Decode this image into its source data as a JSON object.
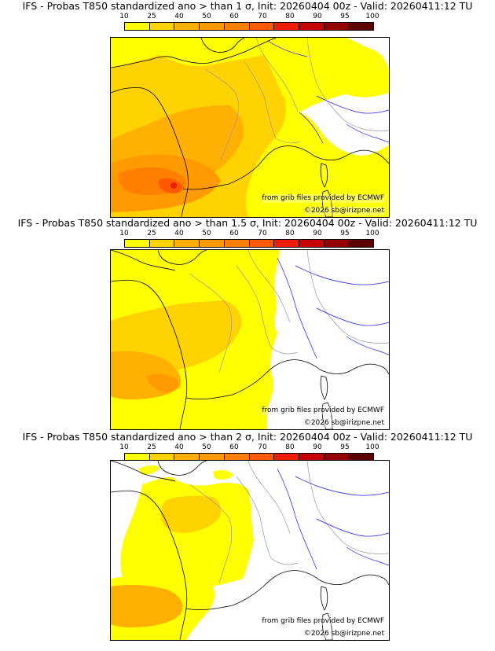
{
  "colors": {
    "c10": "#ffff00",
    "c25": "#ffd200",
    "c40": "#ffb000",
    "c50": "#ff9a00",
    "c60": "#ff8000",
    "c70": "#ff5a00",
    "c80": "#ee1c00",
    "c90": "#c60000",
    "c95": "#920000",
    "c100": "#5a0000",
    "coast": "#000000",
    "border": "#999999",
    "river": "#1a1aff"
  },
  "colorbar": {
    "ticks": [
      "10",
      "25",
      "40",
      "50",
      "60",
      "70",
      "80",
      "90",
      "95",
      "100"
    ],
    "swatch_colors": [
      "#ffff00",
      "#ffd200",
      "#ffb000",
      "#ff9a00",
      "#ff8000",
      "#ff5a00",
      "#ee1c00",
      "#c60000",
      "#920000",
      "#5a0000"
    ]
  },
  "panels": [
    {
      "title": "IFS - Probas T850  standardized ano > than 1 σ, Init: 20260404 00z - Valid: 20260411:12 TU",
      "credit": "from grib files provided by ECMWF",
      "copyright": "©2026 sb@irizpne.net"
    },
    {
      "title": "IFS - Probas T850  standardized ano > than 1.5 σ, Init: 20260404 00z - Valid: 20260411:12 TU",
      "credit": "from grib files provided by ECMWF",
      "copyright": "©2026 sb@irizpne.net"
    },
    {
      "title": "IFS - Probas T850  standardized ano > than 2 σ, Init: 20260404 00z - Valid: 20260411:12 TU",
      "credit": "from grib files provided by ECMWF",
      "copyright": "©2026 sb@irizpne.net"
    }
  ]
}
